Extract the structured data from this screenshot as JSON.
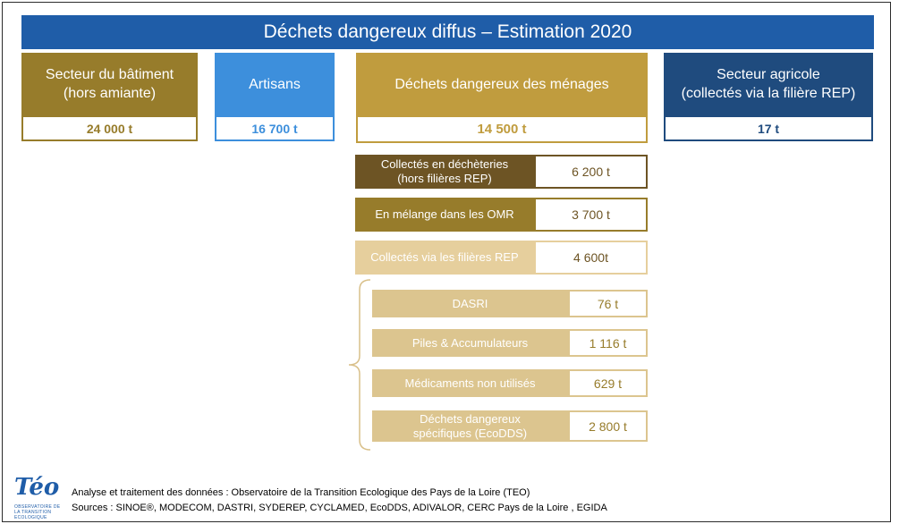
{
  "title": "Déchets dangereux diffus – Estimation 2020",
  "categories": [
    {
      "line1": "Secteur du bâtiment",
      "line2": "(hors amiante)",
      "value": "24 000 t",
      "color": "#977c2b"
    },
    {
      "line1": "Artisans",
      "line2": "",
      "value": "16 700 t",
      "color": "#3d8fdc"
    },
    {
      "line1": "Déchets dangereux des ménages",
      "line2": "",
      "value": "14 500 t",
      "color": "#c09c3e"
    },
    {
      "line1": "Secteur agricole",
      "line2": "(collectés via la filière REP)",
      "value": "17 t",
      "color": "#1f4b7e"
    }
  ],
  "menages_breakdown": [
    {
      "line1": "Collectés en déchèteries",
      "line2": "(hors filières REP)",
      "value": "6 200 t",
      "color": "#6d5424"
    },
    {
      "line1": "En mélange dans les OMR",
      "line2": "",
      "value": "3 700 t",
      "color": "#977c2b"
    },
    {
      "line1": "Collectés via les filières REP",
      "line2": "",
      "value": "4 600t",
      "color": "#e6cf9d"
    }
  ],
  "rep_breakdown": [
    {
      "line1": "DASRI",
      "line2": "",
      "value": "76 t"
    },
    {
      "line1": "Piles & Accumulateurs",
      "line2": "",
      "value": "1 116 t"
    },
    {
      "line1": "Médicaments non utilisés",
      "line2": "",
      "value": "629 t"
    },
    {
      "line1": "Déchets dangereux",
      "line2": "spécifiques (EcoDDS)",
      "value": "2 800 t"
    }
  ],
  "rep_color": "#dcc58f",
  "logo": {
    "text": "Téo",
    "subtitle": "OBSERVATOIRE DE LA TRANSITION ECOLOGIQUE"
  },
  "footer": {
    "analysis": "Analyse et traitement des données : Observatoire de la Transition Ecologique des Pays de la Loire (TEO)",
    "sources": "Sources : SINOE®, MODECOM, DASTRI, SYDEREP, CYCLAMED, EcoDDS, ADIVALOR, CERC Pays de la Loire , EGIDA"
  }
}
